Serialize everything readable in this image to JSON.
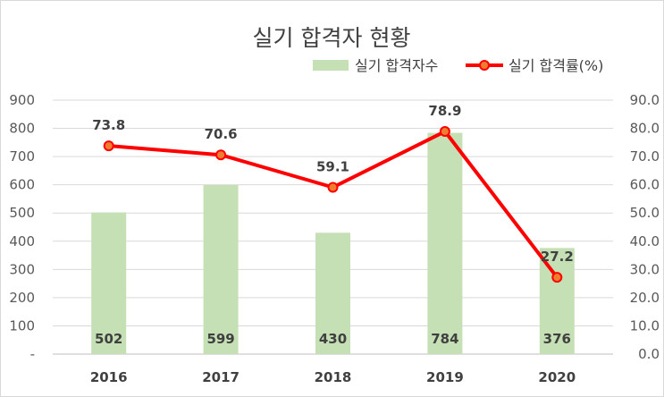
{
  "chart_data": {
    "type": "bar",
    "title": "실기 합격자 현황",
    "categories": [
      "2016",
      "2017",
      "2018",
      "2019",
      "2020"
    ],
    "series": [
      {
        "name": "실기 합격자수",
        "kind": "bar",
        "axis": "left",
        "color": "#c5e0b4",
        "values": [
          502,
          599,
          430,
          784,
          376
        ],
        "labels": [
          "502",
          "599",
          "430",
          "784",
          "376"
        ]
      },
      {
        "name": "실기 합격률(%)",
        "kind": "line",
        "axis": "right",
        "color": "#ff0000",
        "marker_fill": "#ed7d31",
        "values": [
          73.8,
          70.6,
          59.1,
          78.9,
          27.2
        ],
        "labels": [
          "73.8",
          "70.6",
          "59.1",
          "78.9",
          "27.2"
        ]
      }
    ],
    "y_left": {
      "ylim": [
        0,
        900
      ],
      "ticks": [
        "-",
        "100",
        "200",
        "300",
        "400",
        "500",
        "600",
        "700",
        "800",
        "900"
      ]
    },
    "y_right": {
      "ylim": [
        0,
        90
      ],
      "ticks": [
        "0.0",
        "10.0",
        "20.0",
        "30.0",
        "40.0",
        "50.0",
        "60.0",
        "70.0",
        "80.0",
        "90.0"
      ]
    },
    "grid": true,
    "legend_position": "top-right"
  }
}
